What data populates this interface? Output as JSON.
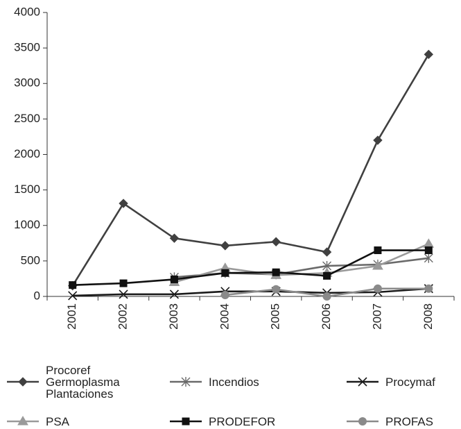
{
  "chart_data": {
    "type": "line",
    "categories": [
      "2001",
      "2002",
      "2003",
      "2004",
      "2005",
      "2006",
      "2007",
      "2008"
    ],
    "series": [
      {
        "name": "Procoref Germoplasma Plantaciones",
        "color": "#404040",
        "marker": "diamond",
        "values": [
          150,
          1310,
          820,
          715,
          770,
          625,
          2200,
          3410
        ]
      },
      {
        "name": "Incendios",
        "color": "#6a6a6a",
        "marker": "asterisk",
        "values": [
          null,
          null,
          270,
          330,
          310,
          430,
          450,
          540
        ]
      },
      {
        "name": "Procymaf",
        "color": "#1a1a1a",
        "marker": "x",
        "values": [
          10,
          30,
          30,
          70,
          70,
          50,
          60,
          110
        ]
      },
      {
        "name": "PSA",
        "color": "#9a9a9a",
        "marker": "triangle",
        "values": [
          null,
          null,
          200,
          400,
          300,
          330,
          430,
          740
        ]
      },
      {
        "name": "PRODEFOR",
        "color": "#111111",
        "marker": "square",
        "values": [
          160,
          185,
          240,
          330,
          340,
          290,
          650,
          650
        ]
      },
      {
        "name": "PROFAS",
        "color": "#8a8a8a",
        "marker": "circle",
        "values": [
          null,
          null,
          null,
          20,
          100,
          0,
          110,
          110
        ]
      }
    ],
    "ylim": [
      0,
      4000
    ],
    "yticks": [
      0,
      500,
      1000,
      1500,
      2000,
      2500,
      3000,
      3500,
      4000
    ],
    "grid": false,
    "legend": "bottom"
  }
}
